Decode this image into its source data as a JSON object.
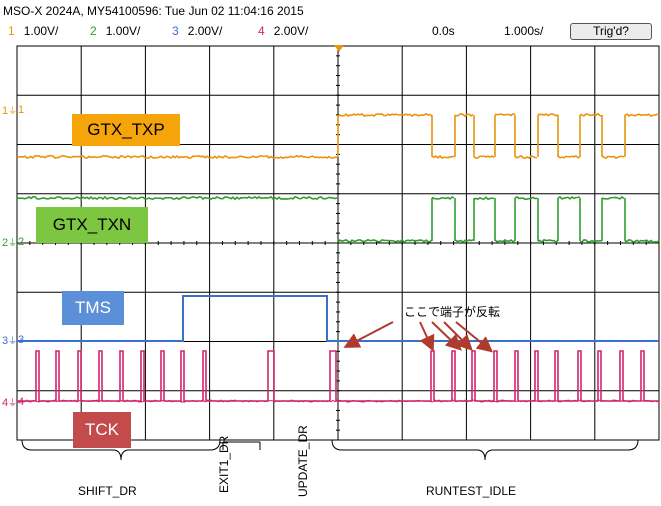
{
  "header": {
    "title": "MSO-X 2024A, MY54100596: Tue Jun 02 11:04:16 2015",
    "channels": [
      {
        "num": "1",
        "scale": "1.00V/",
        "color": "#e8940c"
      },
      {
        "num": "2",
        "scale": "1.00V/",
        "color": "#2f9e2f"
      },
      {
        "num": "3",
        "scale": "2.00V/",
        "color": "#3a6fd0"
      },
      {
        "num": "4",
        "scale": "2.00V/",
        "color": "#d0266e"
      }
    ],
    "time_offset": "0.0s",
    "time_scale": "1.000s/",
    "trigger_button": "Trig'd?"
  },
  "signals": {
    "txp": {
      "label": "GTX_TXP",
      "marker": "1",
      "color": "#e8940c",
      "box": "#f5a50a"
    },
    "txn": {
      "label": "GTX_TXN",
      "marker": "2",
      "color": "#2f9e2f",
      "box": "#7dc642"
    },
    "tms": {
      "label": "TMS",
      "marker": "3",
      "color": "#3a6fd0",
      "box": "#5b8fd8"
    },
    "tck": {
      "label": "TCK",
      "marker": "4",
      "color": "#d0266e",
      "box": "#c44b4b"
    }
  },
  "annotation": "ここで端子が反転",
  "states": {
    "shift_dr": "SHIFT_DR",
    "exit1_dr": "EXIT1_DR",
    "update_dr": "UPDATE_DR",
    "runtest_idle": "RUNTEST_IDLE"
  },
  "colors": {
    "grid": "#000000",
    "trigger_marker": "#e8940c",
    "arrow": "#b03a2e"
  }
}
